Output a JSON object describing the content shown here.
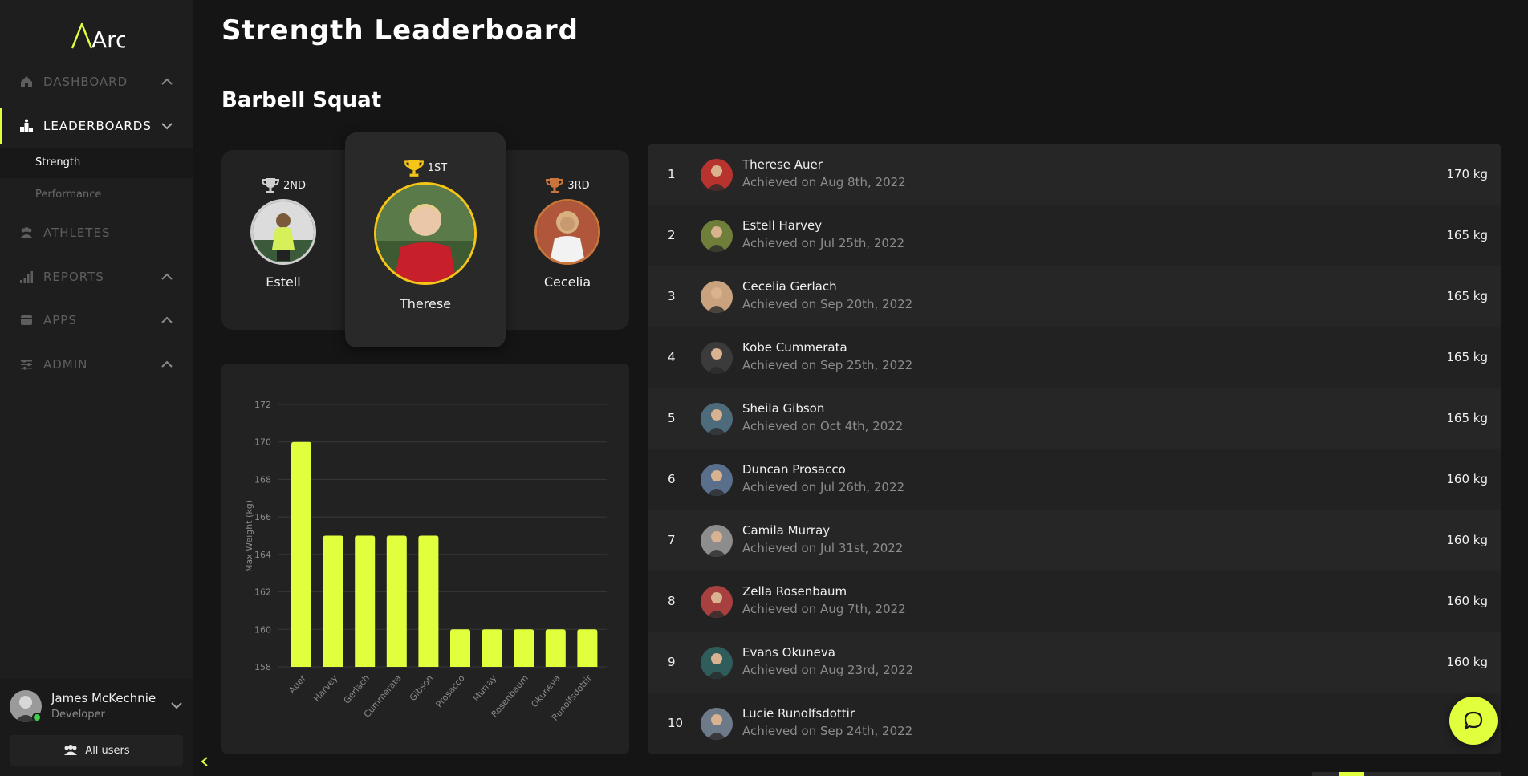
{
  "app": {
    "logo_text": "Arc",
    "accent": "#e2ff3d"
  },
  "sidebar": {
    "items": [
      {
        "label": "Dashboard",
        "icon": "home-icon"
      },
      {
        "label": "Leaderboards",
        "icon": "podium-icon"
      },
      {
        "label": "Athletes",
        "icon": "users-icon"
      },
      {
        "label": "Reports",
        "icon": "bar-signal-icon"
      },
      {
        "label": "Apps",
        "icon": "window-icon"
      },
      {
        "label": "Admin",
        "icon": "sliders-icon"
      }
    ],
    "subitems": [
      {
        "label": "Strength"
      },
      {
        "label": "Performance"
      }
    ]
  },
  "user": {
    "name": "James McKechnie",
    "role": "Developer",
    "all_users_label": "All users"
  },
  "header": {
    "title": "Strength Leaderboard",
    "section": "Barbell Squat"
  },
  "podium": {
    "first": {
      "rank": "1ST",
      "name": "Therese",
      "color": "#f5c518"
    },
    "second": {
      "rank": "2ND",
      "name": "Estell",
      "color": "#cfcfcf"
    },
    "third": {
      "rank": "3RD",
      "name": "Cecelia",
      "color": "#c8743a"
    }
  },
  "chart_data": {
    "type": "bar",
    "ylabel": "Max Weight (kg)",
    "ylim": [
      158,
      172
    ],
    "yticks": [
      158,
      160,
      162,
      164,
      166,
      168,
      170,
      172
    ],
    "categories": [
      "Auer",
      "Harvey",
      "Gerlach",
      "Cummerata",
      "Gibson",
      "Prosacco",
      "Murray",
      "Rosenbaum",
      "Okuneva",
      "Runolfsdottir"
    ],
    "values": [
      170,
      165,
      165,
      165,
      165,
      160,
      160,
      160,
      160,
      160
    ],
    "bar_color": "#e2ff3d",
    "grid": true
  },
  "leaderboard": [
    {
      "rank": "1",
      "name": "Therese Auer",
      "date": "Achieved on Aug 8th, 2022",
      "weight": "170 kg"
    },
    {
      "rank": "2",
      "name": "Estell Harvey",
      "date": "Achieved on Jul 25th, 2022",
      "weight": "165 kg"
    },
    {
      "rank": "3",
      "name": "Cecelia Gerlach",
      "date": "Achieved on Sep 20th, 2022",
      "weight": "165 kg"
    },
    {
      "rank": "4",
      "name": "Kobe Cummerata",
      "date": "Achieved on Sep 25th, 2022",
      "weight": "165 kg"
    },
    {
      "rank": "5",
      "name": "Sheila Gibson",
      "date": "Achieved on Oct 4th, 2022",
      "weight": "165 kg"
    },
    {
      "rank": "6",
      "name": "Duncan Prosacco",
      "date": "Achieved on Jul 26th, 2022",
      "weight": "160 kg"
    },
    {
      "rank": "7",
      "name": "Camila Murray",
      "date": "Achieved on Jul 31st, 2022",
      "weight": "160 kg"
    },
    {
      "rank": "8",
      "name": "Zella Rosenbaum",
      "date": "Achieved on Aug 7th, 2022",
      "weight": "160 kg"
    },
    {
      "rank": "9",
      "name": "Evans Okuneva",
      "date": "Achieved on Aug 23rd, 2022",
      "weight": "160 kg"
    },
    {
      "rank": "10",
      "name": "Lucie Runolfsdottir",
      "date": "Achieved on Sep 24th, 2022",
      "weight": ""
    }
  ],
  "avatar_palette": [
    "#b8322e",
    "#6f7f3a",
    "#c9a37e",
    "#3b3b3b",
    "#4d6b7a",
    "#5a6f8c",
    "#8d8d8d",
    "#a84040",
    "#2f5d5c",
    "#6d7a8a"
  ]
}
